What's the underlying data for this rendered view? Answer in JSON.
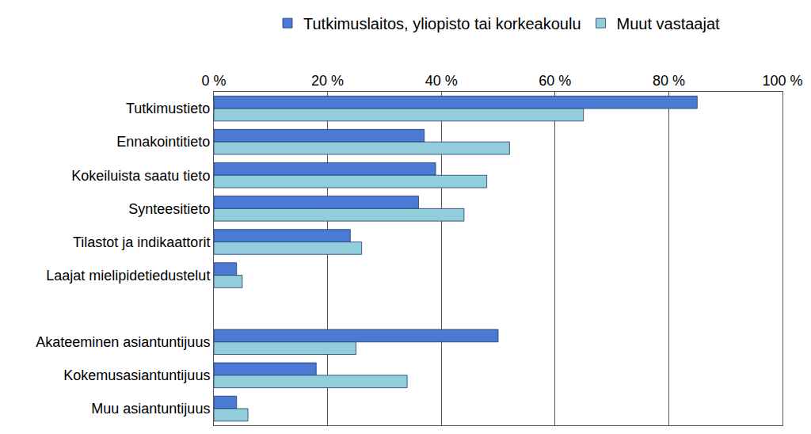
{
  "chart_data": {
    "type": "bar",
    "orientation": "horizontal",
    "categories": [
      "Tutkimustieto",
      "Ennakointitieto",
      "Kokeiluista saatu tieto",
      "Synteesitieto",
      "Tilastot ja indikaattorit",
      "Laajat mielipidetiedustelut",
      null,
      "Akateeminen asiantuntijuus",
      "Kokemusasiantuntijuus",
      "Muu asiantuntijuus"
    ],
    "series": [
      {
        "name": "Tutkimuslaitos, yliopisto tai korkeakoulu",
        "color": "#4a7ad4",
        "values": [
          85,
          37,
          39,
          36,
          24,
          4,
          null,
          50,
          18,
          4
        ]
      },
      {
        "name": "Muut vastaajat",
        "color": "#92cddc",
        "values": [
          65,
          52,
          48,
          44,
          26,
          5,
          null,
          25,
          34,
          6
        ]
      }
    ],
    "xlim": [
      0,
      100
    ],
    "xticks": [
      {
        "value": 0,
        "label": "0 %"
      },
      {
        "value": 20,
        "label": "20 %"
      },
      {
        "value": 40,
        "label": "40 %"
      },
      {
        "value": 60,
        "label": "60 %"
      },
      {
        "value": 80,
        "label": "80 %"
      },
      {
        "value": 100,
        "label": "100 %"
      }
    ],
    "grid": true,
    "legend": "top"
  }
}
